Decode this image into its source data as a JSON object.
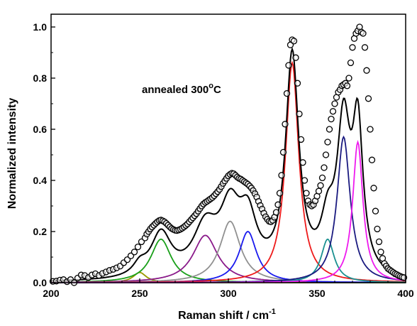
{
  "chart_data": {
    "type": "line",
    "title": "",
    "annotation": {
      "text": "annealed 300",
      "sup": "o",
      "suffix": "C"
    },
    "xlabel": {
      "main": "Raman shift / cm",
      "sup": "-1"
    },
    "ylabel": "Normalized intensity",
    "xlim": [
      200,
      400
    ],
    "ylim": [
      0,
      1.05
    ],
    "x_ticks": [
      200,
      250,
      300,
      350,
      400
    ],
    "y_ticks": [
      0.0,
      0.2,
      0.4,
      0.6,
      0.8,
      1.0
    ],
    "x_tick_labels": [
      "200",
      "250",
      "300",
      "350",
      "400"
    ],
    "y_tick_labels": [
      "0.0",
      "0.2",
      "0.4",
      "0.6",
      "0.8",
      "1.0"
    ],
    "grid": false,
    "components": [
      {
        "center": 250,
        "height": 0.04,
        "fwhm": 9,
        "color": "#9a9a00"
      },
      {
        "center": 262,
        "height": 0.17,
        "fwhm": 14,
        "color": "#1aa01a"
      },
      {
        "center": 287,
        "height": 0.185,
        "fwhm": 17,
        "color": "#8a1a8a"
      },
      {
        "center": 301,
        "height": 0.24,
        "fwhm": 14,
        "color": "#909090"
      },
      {
        "center": 311,
        "height": 0.2,
        "fwhm": 12,
        "color": "#1a1aee"
      },
      {
        "center": 336,
        "height": 0.86,
        "fwhm": 9,
        "color": "#ee1a1a"
      },
      {
        "center": 356,
        "height": 0.17,
        "fwhm": 9,
        "color": "#1a9090"
      },
      {
        "center": 365,
        "height": 0.57,
        "fwhm": 9,
        "color": "#1a1a80"
      },
      {
        "center": 373,
        "height": 0.55,
        "fwhm": 7,
        "color": "#ee1aee"
      }
    ],
    "fit_color": "#000000",
    "data_points": [
      [
        201,
        0.005
      ],
      [
        203,
        0.006
      ],
      [
        205,
        0.01
      ],
      [
        207,
        0.012
      ],
      [
        209,
        0.004
      ],
      [
        211,
        0.012
      ],
      [
        213,
        0.0
      ],
      [
        215,
        0.018
      ],
      [
        217,
        0.03
      ],
      [
        219,
        0.028
      ],
      [
        221,
        0.02
      ],
      [
        223,
        0.03
      ],
      [
        225,
        0.035
      ],
      [
        227,
        0.028
      ],
      [
        229,
        0.036
      ],
      [
        231,
        0.042
      ],
      [
        233,
        0.048
      ],
      [
        235,
        0.052
      ],
      [
        237,
        0.058
      ],
      [
        239,
        0.065
      ],
      [
        241,
        0.078
      ],
      [
        243,
        0.09
      ],
      [
        245,
        0.105
      ],
      [
        247,
        0.12
      ],
      [
        249,
        0.14
      ],
      [
        251,
        0.16
      ],
      [
        253,
        0.175
      ],
      [
        254,
        0.19
      ],
      [
        255,
        0.2
      ],
      [
        256,
        0.21
      ],
      [
        257,
        0.218
      ],
      [
        258,
        0.225
      ],
      [
        259,
        0.232
      ],
      [
        260,
        0.238
      ],
      [
        261,
        0.243
      ],
      [
        262,
        0.245
      ],
      [
        263,
        0.242
      ],
      [
        264,
        0.238
      ],
      [
        265,
        0.232
      ],
      [
        266,
        0.225
      ],
      [
        267,
        0.218
      ],
      [
        268,
        0.212
      ],
      [
        269,
        0.208
      ],
      [
        270,
        0.205
      ],
      [
        271,
        0.204
      ],
      [
        272,
        0.206
      ],
      [
        273,
        0.209
      ],
      [
        274,
        0.213
      ],
      [
        275,
        0.218
      ],
      [
        276,
        0.224
      ],
      [
        277,
        0.23
      ],
      [
        278,
        0.238
      ],
      [
        279,
        0.246
      ],
      [
        280,
        0.254
      ],
      [
        281,
        0.262
      ],
      [
        282,
        0.27
      ],
      [
        283,
        0.28
      ],
      [
        284,
        0.29
      ],
      [
        285,
        0.3
      ],
      [
        286,
        0.308
      ],
      [
        287,
        0.314
      ],
      [
        288,
        0.318
      ],
      [
        289,
        0.323
      ],
      [
        290,
        0.328
      ],
      [
        291,
        0.333
      ],
      [
        292,
        0.34
      ],
      [
        293,
        0.348
      ],
      [
        294,
        0.356
      ],
      [
        295,
        0.365
      ],
      [
        296,
        0.376
      ],
      [
        297,
        0.388
      ],
      [
        298,
        0.398
      ],
      [
        299,
        0.408
      ],
      [
        300,
        0.418
      ],
      [
        301,
        0.424
      ],
      [
        302,
        0.428
      ],
      [
        303,
        0.426
      ],
      [
        304,
        0.42
      ],
      [
        305,
        0.413
      ],
      [
        306,
        0.408
      ],
      [
        307,
        0.405
      ],
      [
        308,
        0.4
      ],
      [
        309,
        0.395
      ],
      [
        310,
        0.39
      ],
      [
        311,
        0.385
      ],
      [
        312,
        0.378
      ],
      [
        313,
        0.37
      ],
      [
        314,
        0.36
      ],
      [
        315,
        0.348
      ],
      [
        316,
        0.335
      ],
      [
        317,
        0.318
      ],
      [
        318,
        0.302
      ],
      [
        319,
        0.288
      ],
      [
        320,
        0.272
      ],
      [
        321,
        0.258
      ],
      [
        322,
        0.248
      ],
      [
        323,
        0.24
      ],
      [
        324,
        0.238
      ],
      [
        325,
        0.244
      ],
      [
        326,
        0.256
      ],
      [
        327,
        0.275
      ],
      [
        328,
        0.305
      ],
      [
        329,
        0.35
      ],
      [
        330,
        0.42
      ],
      [
        331,
        0.51
      ],
      [
        332,
        0.62
      ],
      [
        333,
        0.74
      ],
      [
        334,
        0.85
      ],
      [
        335,
        0.93
      ],
      [
        336,
        0.95
      ],
      [
        337,
        0.945
      ],
      [
        338,
        0.88
      ],
      [
        339,
        0.78
      ],
      [
        340,
        0.66
      ],
      [
        341,
        0.56
      ],
      [
        342,
        0.47
      ],
      [
        343,
        0.4
      ],
      [
        344,
        0.35
      ],
      [
        345,
        0.32
      ],
      [
        346,
        0.305
      ],
      [
        347,
        0.3
      ],
      [
        348,
        0.305
      ],
      [
        349,
        0.32
      ],
      [
        350,
        0.338
      ],
      [
        351,
        0.358
      ],
      [
        352,
        0.38
      ],
      [
        353,
        0.41
      ],
      [
        354,
        0.45
      ],
      [
        355,
        0.5
      ],
      [
        356,
        0.55
      ],
      [
        357,
        0.6
      ],
      [
        358,
        0.64
      ],
      [
        359,
        0.67
      ],
      [
        360,
        0.7
      ],
      [
        361,
        0.725
      ],
      [
        362,
        0.745
      ],
      [
        363,
        0.755
      ],
      [
        364,
        0.77
      ],
      [
        365,
        0.775
      ],
      [
        366,
        0.78
      ],
      [
        367,
        0.77
      ],
      [
        368,
        0.8
      ],
      [
        369,
        0.86
      ],
      [
        370,
        0.92
      ],
      [
        371,
        0.955
      ],
      [
        372,
        0.975
      ],
      [
        373,
        0.985
      ],
      [
        374,
        1.0
      ],
      [
        375,
        0.98
      ],
      [
        376,
        0.975
      ],
      [
        377,
        0.92
      ],
      [
        378,
        0.83
      ],
      [
        379,
        0.72
      ],
      [
        380,
        0.6
      ],
      [
        381,
        0.48
      ],
      [
        382,
        0.37
      ],
      [
        383,
        0.28
      ],
      [
        384,
        0.21
      ],
      [
        385,
        0.16
      ],
      [
        386,
        0.12
      ],
      [
        387,
        0.095
      ],
      [
        388,
        0.075
      ],
      [
        389,
        0.065
      ],
      [
        390,
        0.055
      ],
      [
        391,
        0.05
      ],
      [
        392,
        0.045
      ],
      [
        393,
        0.04
      ],
      [
        394,
        0.035
      ],
      [
        395,
        0.032
      ],
      [
        396,
        0.028
      ],
      [
        397,
        0.025
      ],
      [
        398,
        0.022
      ],
      [
        399,
        0.02
      ]
    ]
  }
}
